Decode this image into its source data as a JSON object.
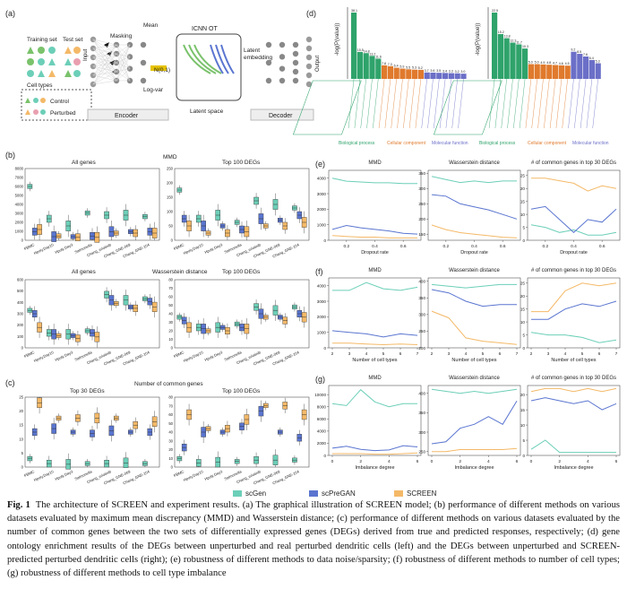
{
  "panels": {
    "a": {
      "label": "(a)",
      "training_set": "Training set",
      "test_set": "Test set",
      "masking": "Masking",
      "mean": "Mean",
      "log_var": "Log-var",
      "input": "Input",
      "noise": "N(0,1)",
      "icnn": "ICNN OT",
      "latent_space": "Latent space",
      "latent_embedding": "Latent\nembedding",
      "output": "Output",
      "encoder": "Encoder",
      "decoder": "Decoder",
      "cell_types": "Cell types",
      "control": "Control",
      "perturbed": "Perturbed"
    },
    "b": {
      "label": "(b)",
      "row1_left_title": "All genes",
      "row1_mid_title": "MMD",
      "row1_right_title": "Top 100 DEGs",
      "row2_left_title": "All genes",
      "row2_mid_title": "Wasserstein distance",
      "row2_right_title": "Top 100 DEGs",
      "datasets": [
        "PBMC",
        "Hpoly.Day10",
        "Hpoly.Day3",
        "Salmonella",
        "Chang_erlotinib",
        "Chang_GNE-069",
        "Chang_GNE-104"
      ],
      "row1_left_yticks": [
        "0",
        "1000",
        "2000",
        "3000",
        "4000",
        "5000",
        "6000",
        "7000",
        "8000"
      ],
      "row1_right_yticks": [
        "0",
        "50",
        "100",
        "150",
        "200",
        "250"
      ],
      "row2_left_yticks": [
        "0",
        "100",
        "200",
        "300",
        "400",
        "500",
        "600"
      ],
      "row2_right_yticks": [
        "0",
        "10",
        "20",
        "30",
        "40",
        "50",
        "60",
        "70",
        "80"
      ]
    },
    "c": {
      "label": "(c)",
      "mid_title": "Number of common genes",
      "left_title": "Top 30 DEGs",
      "right_title": "Top 100 DEGs",
      "left_yticks": [
        "0",
        "5",
        "10",
        "15",
        "20",
        "25"
      ],
      "right_yticks": [
        "0",
        "10",
        "20",
        "30",
        "40",
        "50",
        "60",
        "70",
        "80"
      ]
    },
    "d": {
      "label": "(d)",
      "ylabel": "-log(P(value))",
      "left_values": [
        "38.1",
        "15.5",
        "14.8",
        "13.2",
        "11.6",
        "7.8",
        "7.3",
        "6.4",
        "5.9",
        "5.5",
        "5.3",
        "5.2",
        "3.7",
        "3.6",
        "3.5",
        "3.4",
        "3.3",
        "3.2",
        "3.0"
      ],
      "right_values": [
        "22.5",
        "15.2",
        "13.8",
        "12.3",
        "11.7",
        "10.3",
        "5.0",
        "5.0",
        "4.9",
        "4.8",
        "4.7",
        "4.6",
        "4.5",
        "9.2",
        "8.5",
        "7.6",
        "6.4",
        "5.3"
      ],
      "cat_bio": "Biological process",
      "cat_cell": "Cellular component",
      "cat_mol": "Molecular function"
    },
    "e": {
      "label": "(e)",
      "titles": [
        "MMD",
        "Wasserstein distance",
        "# of common genes in top 30 DEGs"
      ],
      "xlabel": "Dropout rate",
      "xticks": [
        "0.2",
        "0.4",
        "0.6"
      ],
      "y1": [
        "0",
        "1000",
        "2000",
        "3000",
        "4000"
      ],
      "y2": [
        "150",
        "200",
        "250",
        "300",
        "350"
      ],
      "y3": [
        "0",
        "5",
        "10",
        "15",
        "20",
        "25"
      ]
    },
    "f": {
      "label": "(f)",
      "titles": [
        "MMD",
        "Wasserstein distance",
        "# of common genes in top 30 DEGs"
      ],
      "xlabel": "Number of cell types",
      "xticks": [
        "2",
        "3",
        "4",
        "5",
        "6",
        "7"
      ],
      "y1": [
        "0",
        "1000",
        "2000",
        "3000",
        "4000"
      ],
      "y2": [
        "200",
        "250",
        "300",
        "350",
        "400"
      ],
      "y3": [
        "0",
        "5",
        "10",
        "15",
        "20",
        "25"
      ]
    },
    "g": {
      "label": "(g)",
      "titles": [
        "MMD",
        "Wasserstein distance",
        "# of common genes in top 30 DEGs"
      ],
      "xlabel": "Imbalance degree",
      "xticks": [
        "0",
        "2",
        "4",
        "6"
      ],
      "y1": [
        "0",
        "2000",
        "4000",
        "6000",
        "8000",
        "10000"
      ],
      "y2": [
        "250",
        "300",
        "350",
        "400"
      ],
      "y3": [
        "0",
        "5",
        "10",
        "15",
        "20"
      ]
    }
  },
  "legend": {
    "scgen": "scGen",
    "scpregan": "scPreGAN",
    "screen": "SCREEN"
  },
  "colors": {
    "scgen": "#6ccfb8",
    "scpregan": "#5a75d0",
    "screen": "#f4b968",
    "green": "#2fa36b",
    "orange": "#e07a2d",
    "purple": "#6b6fc7"
  },
  "caption": {
    "fig": "Fig. 1",
    "text": "The architecture of SCREEN and experiment results. (a) The graphical illustration of SCREEN model; (b) performance of different methods on various datasets evaluated by maximum mean discrepancy (MMD) and Wasserstein distance; (c) performance of different methods on various datasets evaluated by the number of common genes between the two sets of differentially expressed genes (DEGs) derived from true and predicted responses, respectively; (d) gene ontology enrichment results of the DEGs between unperturbed and real perturbed dendritic cells (left) and the DEGs between unperturbed and SCREEN-predicted perturbed dendritic cells (right); (e) robustness of different methods to data noise/sparsity; (f) robustness of different methods to number of cell types; (g) robustness of different methods to cell type imbalance"
  },
  "chart_data": [
    {
      "type": "line",
      "title": "MMD",
      "xlabel": "Dropout rate",
      "x": [
        0.1,
        0.2,
        0.3,
        0.4,
        0.5,
        0.6,
        0.7
      ],
      "ylim": [
        0,
        4500
      ],
      "series": [
        {
          "name": "scGen",
          "values": [
            4000,
            3800,
            3750,
            3700,
            3700,
            3650,
            3650
          ]
        },
        {
          "name": "scPreGAN",
          "values": [
            700,
            950,
            800,
            700,
            600,
            450,
            400
          ]
        },
        {
          "name": "SCREEN",
          "values": [
            300,
            250,
            200,
            200,
            150,
            150,
            150
          ]
        }
      ]
    },
    {
      "type": "line",
      "title": "Wasserstein distance",
      "xlabel": "Dropout rate",
      "x": [
        0.1,
        0.2,
        0.3,
        0.4,
        0.5,
        0.6,
        0.7
      ],
      "ylim": [
        130,
        360
      ],
      "series": [
        {
          "name": "scGen",
          "values": [
            340,
            330,
            320,
            325,
            320,
            325,
            325
          ]
        },
        {
          "name": "scPreGAN",
          "values": [
            280,
            275,
            250,
            240,
            230,
            215,
            200
          ]
        },
        {
          "name": "SCREEN",
          "values": [
            180,
            165,
            155,
            150,
            145,
            140,
            138
          ]
        }
      ]
    },
    {
      "type": "line",
      "title": "# of common genes in top 30 DEGs",
      "xlabel": "Dropout rate",
      "x": [
        0.1,
        0.2,
        0.3,
        0.4,
        0.5,
        0.6,
        0.7
      ],
      "ylim": [
        0,
        27
      ],
      "series": [
        {
          "name": "scGen",
          "values": [
            6,
            5,
            3,
            4,
            2,
            2,
            3
          ]
        },
        {
          "name": "scPreGAN",
          "values": [
            12,
            13,
            8,
            3,
            8,
            7,
            12
          ]
        },
        {
          "name": "SCREEN",
          "values": [
            24,
            24,
            23,
            22,
            19,
            21,
            20
          ]
        }
      ]
    },
    {
      "type": "line",
      "title": "MMD",
      "xlabel": "Number of cell types",
      "x": [
        2,
        3,
        4,
        5,
        6,
        7
      ],
      "ylim": [
        0,
        4500
      ],
      "series": [
        {
          "name": "scGen",
          "values": [
            3700,
            3700,
            4200,
            3800,
            3700,
            3900
          ]
        },
        {
          "name": "scPreGAN",
          "values": [
            1100,
            1000,
            900,
            700,
            900,
            800
          ]
        },
        {
          "name": "SCREEN",
          "values": [
            300,
            300,
            250,
            200,
            250,
            200
          ]
        }
      ]
    },
    {
      "type": "line",
      "title": "Wasserstein distance",
      "xlabel": "Number of cell types",
      "x": [
        2,
        3,
        4,
        5,
        6,
        7
      ],
      "ylim": [
        200,
        410
      ],
      "series": [
        {
          "name": "scGen",
          "values": [
            390,
            385,
            380,
            385,
            390,
            390
          ]
        },
        {
          "name": "scPreGAN",
          "values": [
            375,
            365,
            340,
            325,
            330,
            330
          ]
        },
        {
          "name": "SCREEN",
          "values": [
            310,
            290,
            230,
            220,
            215,
            210
          ]
        }
      ]
    },
    {
      "type": "line",
      "title": "# of common genes in top 30 DEGs",
      "xlabel": "Number of cell types",
      "x": [
        2,
        3,
        4,
        5,
        6,
        7
      ],
      "ylim": [
        0,
        27
      ],
      "series": [
        {
          "name": "scGen",
          "values": [
            6,
            5,
            5,
            4,
            2,
            3
          ]
        },
        {
          "name": "scPreGAN",
          "values": [
            11,
            11,
            15,
            17,
            16,
            18
          ]
        },
        {
          "name": "SCREEN",
          "values": [
            14,
            14,
            22,
            25,
            24,
            25
          ]
        }
      ]
    },
    {
      "type": "line",
      "title": "MMD",
      "xlabel": "Imbalance degree",
      "x": [
        0,
        1,
        2,
        3,
        4,
        5,
        6
      ],
      "ylim": [
        0,
        11500
      ],
      "series": [
        {
          "name": "scGen",
          "values": [
            8500,
            8200,
            10800,
            8800,
            8000,
            8500,
            8500
          ]
        },
        {
          "name": "scPreGAN",
          "values": [
            1200,
            1500,
            1000,
            800,
            900,
            1600,
            1400
          ]
        },
        {
          "name": "SCREEN",
          "values": [
            300,
            300,
            300,
            200,
            200,
            300,
            400
          ]
        }
      ]
    },
    {
      "type": "line",
      "title": "Wasserstein distance",
      "xlabel": "Imbalance degree",
      "x": [
        0,
        1,
        2,
        3,
        4,
        5,
        6
      ],
      "ylim": [
        240,
        420
      ],
      "series": [
        {
          "name": "scGen",
          "values": [
            410,
            405,
            400,
            405,
            400,
            405,
            410
          ]
        },
        {
          "name": "scPreGAN",
          "values": [
            270,
            275,
            310,
            320,
            340,
            320,
            380
          ]
        },
        {
          "name": "SCREEN",
          "values": [
            250,
            250,
            255,
            255,
            255,
            255,
            258
          ]
        }
      ]
    },
    {
      "type": "line",
      "title": "# of common genes in top 30 DEGs",
      "xlabel": "Imbalance degree",
      "x": [
        0,
        1,
        2,
        3,
        4,
        5,
        6
      ],
      "ylim": [
        0,
        23
      ],
      "series": [
        {
          "name": "scGen",
          "values": [
            2,
            5,
            1,
            1,
            1,
            1,
            1
          ]
        },
        {
          "name": "scPreGAN",
          "values": [
            18,
            19,
            18,
            17,
            18,
            15,
            17
          ]
        },
        {
          "name": "SCREEN",
          "values": [
            21,
            22,
            22,
            21,
            22,
            21,
            22
          ]
        }
      ]
    }
  ]
}
